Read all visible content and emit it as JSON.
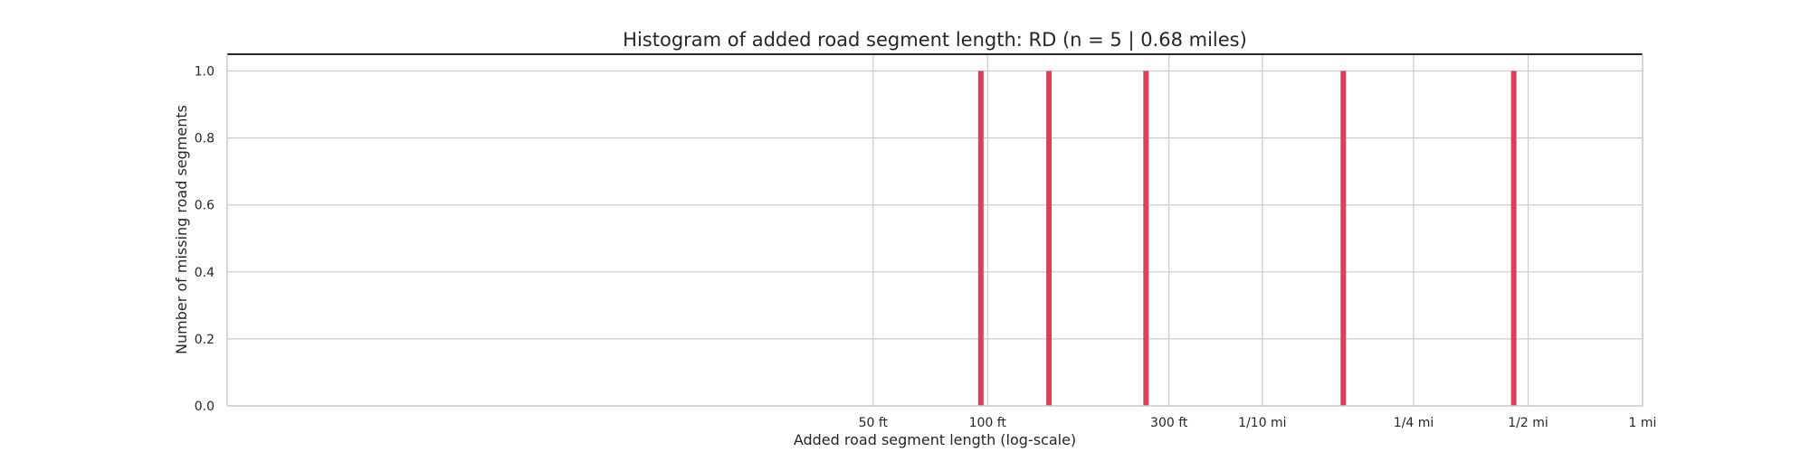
{
  "chart_data": {
    "type": "bar",
    "title": "Histogram of added road segment length: RD (n = 5 | 0.68 miles)",
    "xlabel": "Added road segment  length (log-scale)",
    "ylabel": "Number of missing road segments",
    "x_scale": "log",
    "x_unit": "ft",
    "xlim": [
      1,
      5280
    ],
    "ylim": [
      0,
      1.05
    ],
    "x_ticks": [
      {
        "value": 50,
        "label": "50 ft"
      },
      {
        "value": 100,
        "label": "100 ft"
      },
      {
        "value": 300,
        "label": "300 ft"
      },
      {
        "value": 528,
        "label": "1/10 mi"
      },
      {
        "value": 1320,
        "label": "1/4 mi"
      },
      {
        "value": 2640,
        "label": "1/2 mi"
      },
      {
        "value": 5280,
        "label": "1 mi"
      }
    ],
    "y_ticks": [
      {
        "value": 0.0,
        "label": "0.0"
      },
      {
        "value": 0.2,
        "label": "0.2"
      },
      {
        "value": 0.4,
        "label": "0.4"
      },
      {
        "value": 0.6,
        "label": "0.6"
      },
      {
        "value": 0.8,
        "label": "0.8"
      },
      {
        "value": 1.0,
        "label": "1.0"
      }
    ],
    "bars": [
      {
        "x": 96,
        "count": 1
      },
      {
        "x": 145,
        "count": 1
      },
      {
        "x": 261,
        "count": 1
      },
      {
        "x": 862,
        "count": 1
      },
      {
        "x": 2420,
        "count": 1
      }
    ],
    "bar_color": "#d9415a",
    "grid": true
  }
}
